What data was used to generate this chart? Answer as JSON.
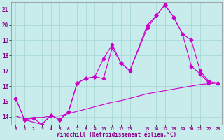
{
  "xlabel": "Windchill (Refroidissement éolien,°C)",
  "background_color": "#c8ecec",
  "grid_color": "#a8d8d8",
  "line_color": "#cc00cc",
  "xlim": [
    -0.5,
    23.5
  ],
  "ylim": [
    13.5,
    21.5
  ],
  "xticks": [
    0,
    1,
    2,
    3,
    4,
    5,
    6,
    7,
    8,
    9,
    10,
    11,
    12,
    13,
    15,
    16,
    17,
    18,
    19,
    20,
    21,
    22,
    23
  ],
  "yticks": [
    14,
    15,
    16,
    17,
    18,
    19,
    20,
    21
  ],
  "curve1_x": [
    0,
    1,
    2,
    3,
    4,
    5,
    6,
    7,
    8,
    9,
    10,
    11,
    12,
    13,
    15,
    16,
    17,
    18,
    19,
    20,
    21,
    22,
    23
  ],
  "curve1_y": [
    15.2,
    13.8,
    13.9,
    13.5,
    14.1,
    13.8,
    14.3,
    16.2,
    16.5,
    16.6,
    17.8,
    18.7,
    17.5,
    17.0,
    20.0,
    20.6,
    21.3,
    20.5,
    19.4,
    19.0,
    17.0,
    16.3,
    16.2
  ],
  "curve2_x": [
    0,
    1,
    3,
    4,
    5,
    6,
    7,
    8,
    9,
    10,
    11,
    12,
    13,
    15,
    16,
    17,
    18,
    19,
    20,
    21,
    22,
    23
  ],
  "curve2_y": [
    15.2,
    13.8,
    13.5,
    14.1,
    13.8,
    14.3,
    16.2,
    16.5,
    16.6,
    16.5,
    18.5,
    17.5,
    17.0,
    19.8,
    20.6,
    21.3,
    20.5,
    19.4,
    17.3,
    16.8,
    16.2,
    16.2
  ],
  "curve3_x": [
    0,
    1,
    2,
    3,
    4,
    5,
    6,
    7,
    8,
    9,
    10,
    11,
    12,
    13,
    15,
    16,
    17,
    18,
    19,
    20,
    21,
    22,
    23
  ],
  "curve3_y": [
    14.05,
    13.85,
    13.95,
    13.95,
    14.05,
    14.05,
    14.2,
    14.35,
    14.5,
    14.65,
    14.8,
    14.95,
    15.05,
    15.2,
    15.5,
    15.6,
    15.7,
    15.8,
    15.9,
    16.0,
    16.1,
    16.15,
    16.2
  ]
}
